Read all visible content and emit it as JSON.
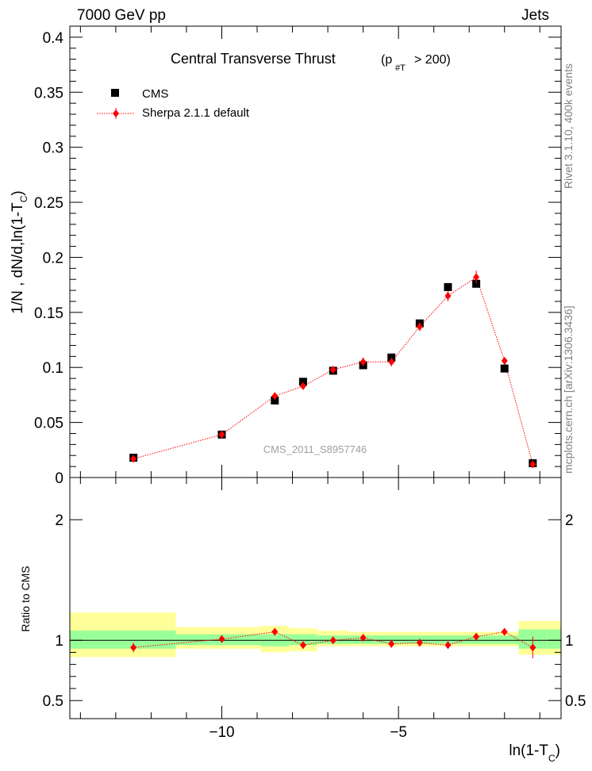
{
  "header": {
    "left": "7000 GeV pp",
    "right": "Jets"
  },
  "side_labels": {
    "rivet": "Rivet 3.1.10,  400k events",
    "mcplots": "mcplots.cern.ch [arXiv:1306.3436]"
  },
  "watermark": "CMS_2011_S8957746",
  "colors": {
    "data": "#000000",
    "mc": "#ff0000",
    "band_inner": "#99ff99",
    "band_outer": "#ffff99"
  },
  "chart_data": [
    {
      "type": "scatter",
      "title": "Central Transverse Thrust",
      "title_sub": "(p",
      "title_sub2": "#T",
      "title_sub3": "> 200)",
      "ylabel": "1/N , dN/d,ln(1-T",
      "ylabel_sub": "C",
      "ylabel_end": ")",
      "ylim": [
        0,
        0.41
      ],
      "yticks": [
        0,
        0.05,
        0.1,
        0.15,
        0.2,
        0.25,
        0.3,
        0.35,
        0.4
      ],
      "ytick_labels": [
        "0",
        "0.05",
        "0.1",
        "0.15",
        "0.2",
        "0.25",
        "0.3",
        "0.35",
        "0.4"
      ],
      "legend": {
        "position": "top-left",
        "entries": [
          "CMS",
          "Sherpa 2.1.1 default"
        ]
      },
      "series": [
        {
          "name": "CMS",
          "marker": "square",
          "x": [
            -12.5,
            -10.0,
            -8.5,
            -7.7,
            -6.85,
            -6.0,
            -5.2,
            -4.4,
            -3.6,
            -2.8,
            -2.0,
            -1.2
          ],
          "y": [
            0.018,
            0.039,
            0.07,
            0.087,
            0.097,
            0.102,
            0.109,
            0.14,
            0.173,
            0.176,
            0.099,
            0.013
          ]
        },
        {
          "name": "Sherpa 2.1.1 default",
          "marker": "diamond",
          "x": [
            -12.5,
            -10.0,
            -8.5,
            -7.7,
            -6.85,
            -6.0,
            -5.2,
            -4.4,
            -3.6,
            -2.8,
            -2.0,
            -1.2
          ],
          "y": [
            0.017,
            0.039,
            0.074,
            0.083,
            0.098,
            0.105,
            0.105,
            0.137,
            0.165,
            0.182,
            0.106,
            0.012
          ],
          "err": [
            0.001,
            0.001,
            0.003,
            0.003,
            0.003,
            0.004,
            0.004,
            0.004,
            0.005,
            0.006,
            0.003,
            0.002
          ]
        }
      ]
    },
    {
      "type": "scatter",
      "ylabel": "Ratio to CMS",
      "xlabel": "ln(1-T",
      "xlabel_sub": "C",
      "xlabel_end": ")",
      "xlim": [
        -14.3,
        -0.4
      ],
      "xticks": [
        -10,
        -5
      ],
      "xtick_labels": [
        "−10",
        "−5"
      ],
      "ylim": [
        0.35,
        2.35
      ],
      "yticks": [
        0.5,
        1,
        2
      ],
      "ytick_labels": [
        "0.5",
        "1",
        "2"
      ],
      "bands": [
        {
          "x0": -14.3,
          "x1": -11.3,
          "inner": [
            0.93,
            1.08
          ],
          "outer": [
            0.86,
            1.23
          ]
        },
        {
          "x0": -11.3,
          "x1": -8.9,
          "inner": [
            0.96,
            1.05
          ],
          "outer": [
            0.93,
            1.11
          ]
        },
        {
          "x0": -8.9,
          "x1": -8.1,
          "inner": [
            0.95,
            1.05
          ],
          "outer": [
            0.9,
            1.12
          ]
        },
        {
          "x0": -8.1,
          "x1": -7.3,
          "inner": [
            0.96,
            1.05
          ],
          "outer": [
            0.91,
            1.1
          ]
        },
        {
          "x0": -7.3,
          "x1": -6.4,
          "inner": [
            0.97,
            1.04
          ],
          "outer": [
            0.95,
            1.08
          ]
        },
        {
          "x0": -6.4,
          "x1": -1.6,
          "inner": [
            0.97,
            1.04
          ],
          "outer": [
            0.95,
            1.07
          ]
        },
        {
          "x0": -1.6,
          "x1": -0.8,
          "inner": [
            0.93,
            1.09
          ],
          "outer": [
            0.88,
            1.16
          ]
        },
        {
          "x0": -0.8,
          "x1": -0.4,
          "inner": [
            0.93,
            1.09
          ],
          "outer": [
            0.88,
            1.16
          ]
        }
      ],
      "series": [
        {
          "name": "Sherpa 2.1.1 default",
          "x": [
            -12.5,
            -10.0,
            -8.5,
            -7.7,
            -6.85,
            -6.0,
            -5.2,
            -4.4,
            -3.6,
            -2.8,
            -2.0,
            -1.2
          ],
          "y": [
            0.94,
            1.01,
            1.07,
            0.96,
            1.0,
            1.02,
            0.97,
            0.98,
            0.96,
            1.03,
            1.07,
            0.94
          ],
          "err": [
            0.04,
            0.03,
            0.03,
            0.03,
            0.03,
            0.03,
            0.03,
            0.03,
            0.03,
            0.03,
            0.03,
            0.09
          ]
        }
      ]
    }
  ]
}
